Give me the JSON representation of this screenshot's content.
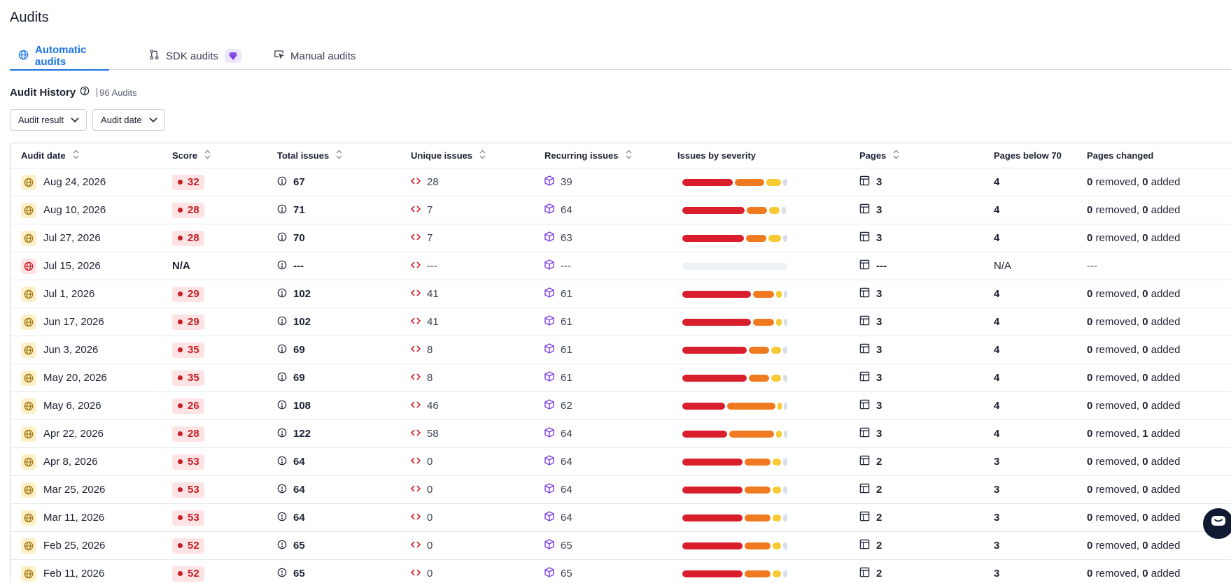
{
  "page": {
    "title": "Audits"
  },
  "tabs": [
    {
      "label": "Automatic audits",
      "icon": "globe-icon",
      "active": true
    },
    {
      "label": "SDK audits",
      "icon": "git-branch-icon",
      "badge_icon": "diamond-icon",
      "active": false
    },
    {
      "label": "Manual audits",
      "icon": "cursor-screen-icon",
      "active": false
    }
  ],
  "history": {
    "title": "Audit History",
    "count": "96 Audits"
  },
  "filters": {
    "result": "Audit result",
    "date": "Audit date"
  },
  "columns": {
    "date": "Audit date",
    "score": "Score",
    "total": "Total issues",
    "unique": "Unique issues",
    "recurring": "Recurring issues",
    "severity": "Issues by severity",
    "pages": "Pages",
    "below": "Pages below 70",
    "changed": "Pages changed"
  },
  "changed_words": {
    "removed": "removed,",
    "added": "added"
  },
  "colors": {
    "critical": "#d91f2b",
    "serious": "#f07a1f",
    "moderate": "#f7c932",
    "minor": "#d9dee6",
    "accent": "#1a73e8"
  },
  "rows": [
    {
      "date": "Aug 24, 2026",
      "score": "32",
      "total": "67",
      "unique": "28",
      "recurring": "39",
      "severity": [
        0.48,
        0.28,
        0.14,
        0.04
      ],
      "pages": "3",
      "below": "4",
      "removed": "0",
      "added": "0"
    },
    {
      "date": "Aug 10, 2026",
      "score": "28",
      "total": "71",
      "unique": "7",
      "recurring": "64",
      "severity": [
        0.59,
        0.19,
        0.1,
        0.04
      ],
      "pages": "3",
      "below": "4",
      "removed": "0",
      "added": "0"
    },
    {
      "date": "Jul 27, 2026",
      "score": "28",
      "total": "70",
      "unique": "7",
      "recurring": "63",
      "severity": [
        0.59,
        0.19,
        0.12,
        0.04
      ],
      "pages": "3",
      "below": "4",
      "removed": "0",
      "added": "0"
    },
    {
      "date": "Jul 15, 2026",
      "score": "N/A",
      "total": "---",
      "unique": "---",
      "recurring": "---",
      "severity": null,
      "pages": "---",
      "below": "N/A",
      "changed": "---"
    },
    {
      "date": "Jul 1, 2026",
      "score": "29",
      "total": "102",
      "unique": "41",
      "recurring": "61",
      "severity": [
        0.66,
        0.2,
        0.05,
        0.03
      ],
      "pages": "3",
      "below": "4",
      "removed": "0",
      "added": "0"
    },
    {
      "date": "Jun 17, 2026",
      "score": "29",
      "total": "102",
      "unique": "41",
      "recurring": "61",
      "severity": [
        0.66,
        0.2,
        0.05,
        0.03
      ],
      "pages": "3",
      "below": "4",
      "removed": "0",
      "added": "0"
    },
    {
      "date": "Jun 3, 2026",
      "score": "35",
      "total": "69",
      "unique": "8",
      "recurring": "61",
      "severity": [
        0.61,
        0.19,
        0.09,
        0.04
      ],
      "pages": "3",
      "below": "4",
      "removed": "0",
      "added": "0"
    },
    {
      "date": "May 20, 2026",
      "score": "35",
      "total": "69",
      "unique": "8",
      "recurring": "61",
      "severity": [
        0.61,
        0.19,
        0.09,
        0.04
      ],
      "pages": "3",
      "below": "4",
      "removed": "0",
      "added": "0"
    },
    {
      "date": "May 6, 2026",
      "score": "26",
      "total": "108",
      "unique": "46",
      "recurring": "62",
      "severity": [
        0.41,
        0.46,
        0.04,
        0.03
      ],
      "pages": "3",
      "below": "4",
      "removed": "0",
      "added": "0"
    },
    {
      "date": "Apr 22, 2026",
      "score": "28",
      "total": "122",
      "unique": "58",
      "recurring": "64",
      "severity": [
        0.44,
        0.44,
        0.05,
        0.03
      ],
      "pages": "3",
      "below": "4",
      "removed": "0",
      "added": "1"
    },
    {
      "date": "Apr 8, 2026",
      "score": "53",
      "total": "64",
      "unique": "0",
      "recurring": "64",
      "severity": [
        0.58,
        0.25,
        0.08,
        0.04
      ],
      "pages": "2",
      "below": "3",
      "removed": "0",
      "added": "0"
    },
    {
      "date": "Mar 25, 2026",
      "score": "53",
      "total": "64",
      "unique": "0",
      "recurring": "64",
      "severity": [
        0.58,
        0.25,
        0.08,
        0.04
      ],
      "pages": "2",
      "below": "3",
      "removed": "0",
      "added": "0"
    },
    {
      "date": "Mar 11, 2026",
      "score": "53",
      "total": "64",
      "unique": "0",
      "recurring": "64",
      "severity": [
        0.58,
        0.25,
        0.08,
        0.04
      ],
      "pages": "2",
      "below": "3",
      "removed": "0",
      "added": "0"
    },
    {
      "date": "Feb 25, 2026",
      "score": "52",
      "total": "65",
      "unique": "0",
      "recurring": "65",
      "severity": [
        0.58,
        0.25,
        0.08,
        0.04
      ],
      "pages": "2",
      "below": "3",
      "removed": "0",
      "added": "0"
    },
    {
      "date": "Feb 11, 2026",
      "score": "52",
      "total": "65",
      "unique": "0",
      "recurring": "65",
      "severity": [
        0.58,
        0.25,
        0.08,
        0.04
      ],
      "pages": "2",
      "below": "3",
      "removed": "0",
      "added": "0"
    }
  ],
  "chat": {
    "icon": "chat-bubble-icon"
  }
}
